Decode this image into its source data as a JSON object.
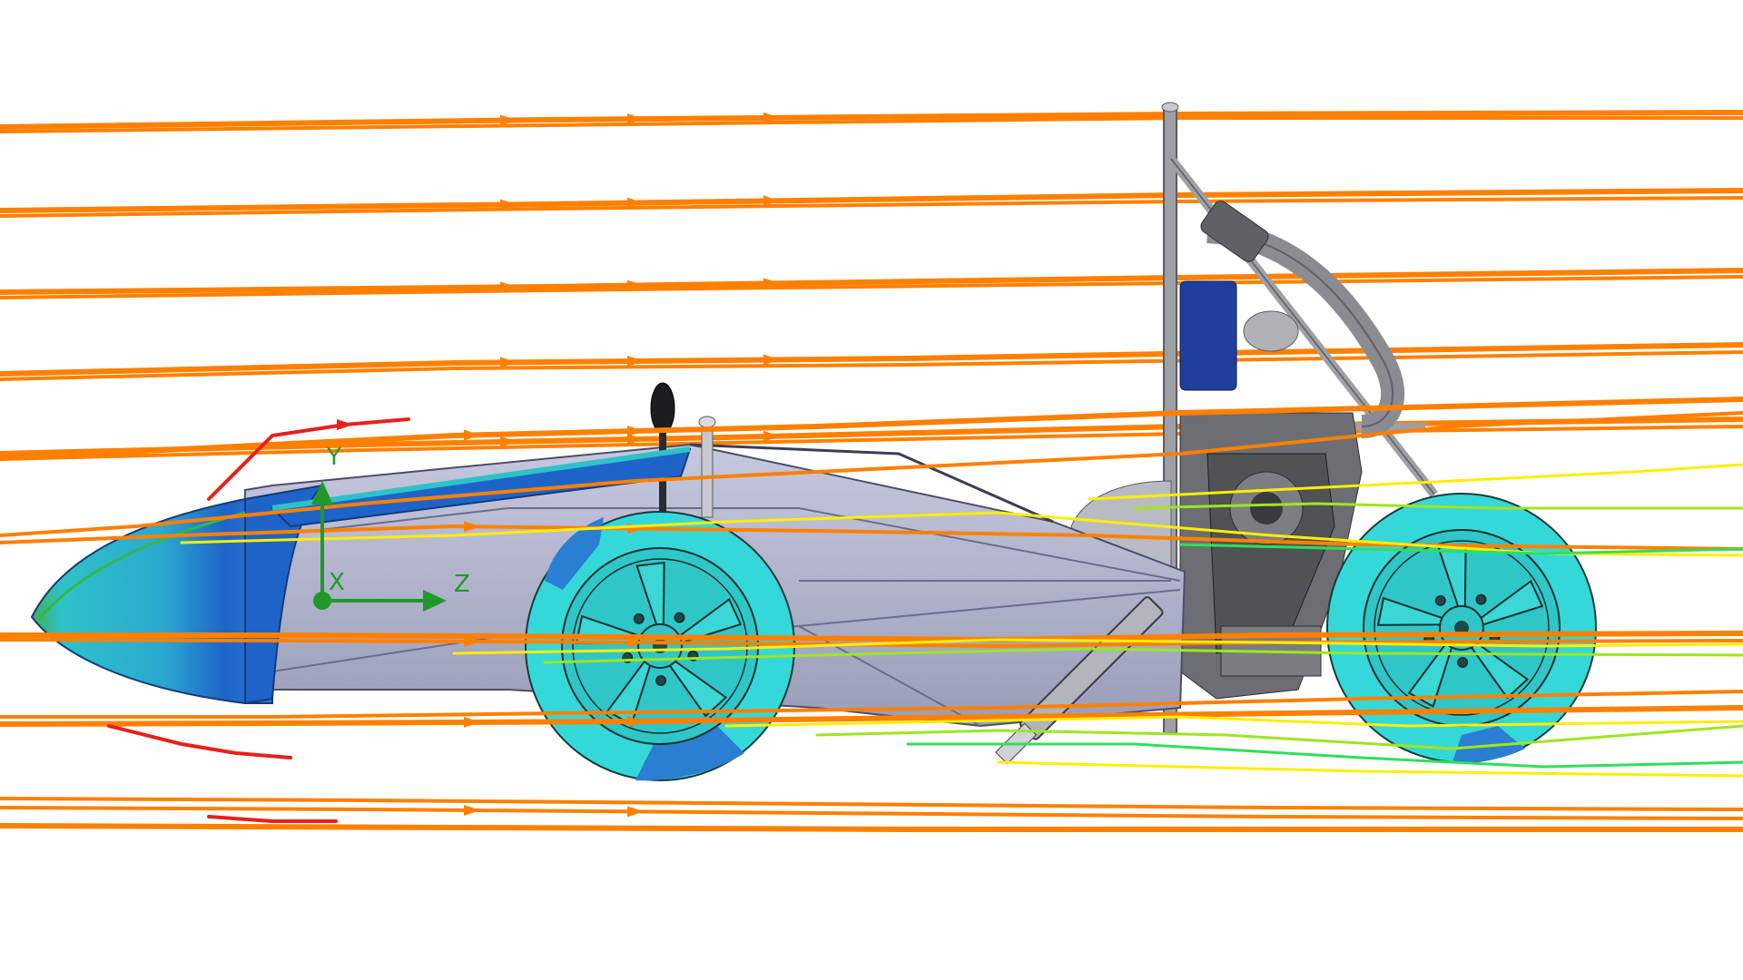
{
  "axes": {
    "y_label": "Y",
    "x_label": "X",
    "z_label": "Z",
    "color": "#1f9a2a"
  },
  "colors": {
    "streamline_main": "#ff8000",
    "streamline_fast": "#e8201a",
    "streamline_slow": "#ffee00",
    "streamline_slower": "#9de620",
    "streamline_slowest": "#2ee05a",
    "body_panel": "#a9acc8",
    "nose_cyan": "#2ec2c8",
    "nose_blue": "#1e64c8",
    "tire": "#35d8d8",
    "tire_dark": "#2a7fd2",
    "frame_tube": "#9ea0a6",
    "seat": "#1f3f9c"
  }
}
